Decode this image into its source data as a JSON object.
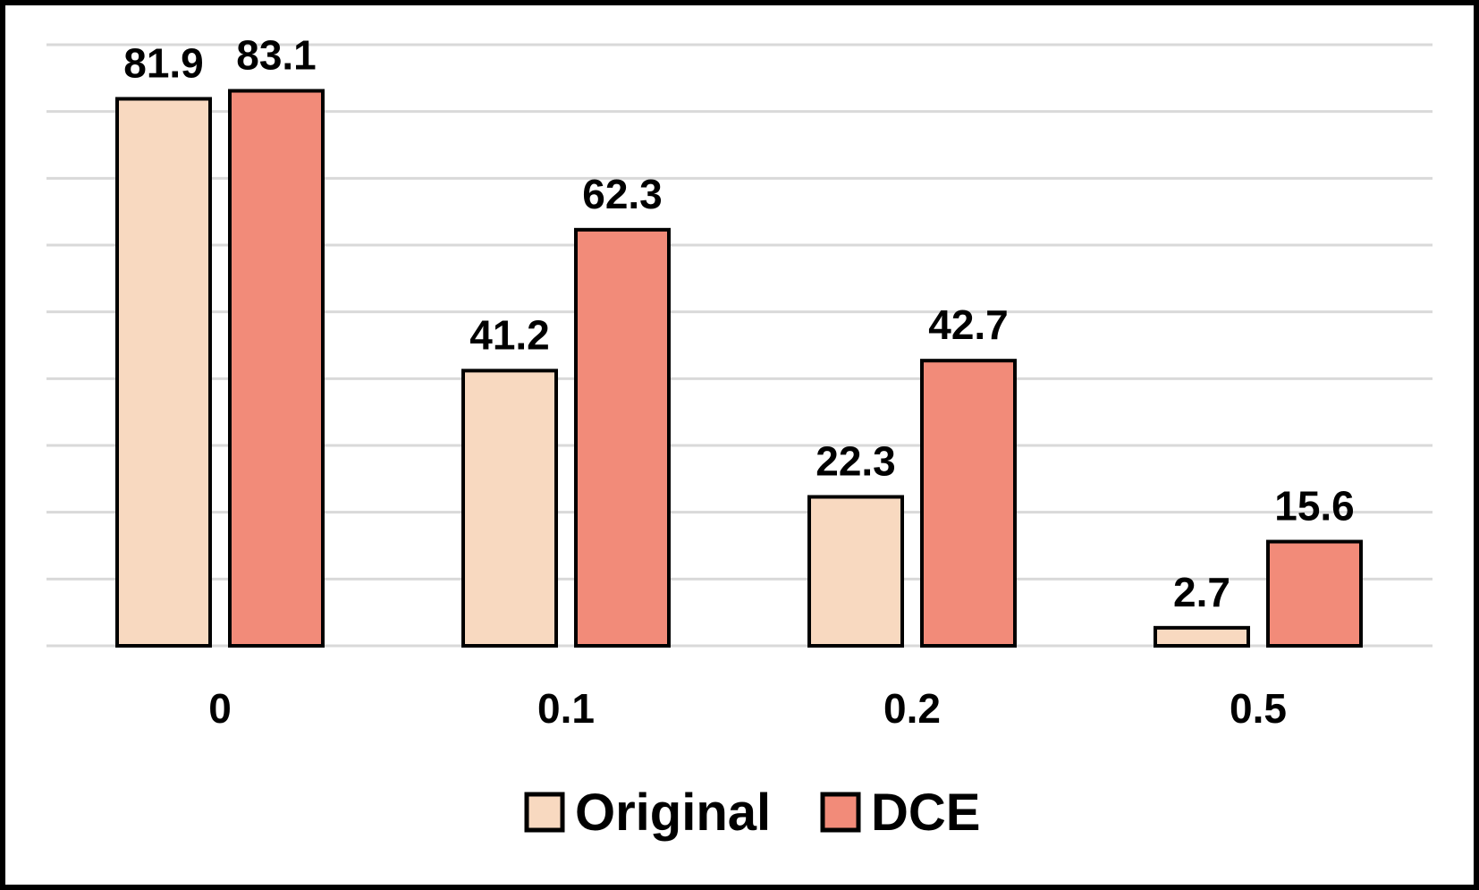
{
  "chart_data": {
    "type": "bar",
    "categories": [
      "0",
      "0.1",
      "0.2",
      "0.5"
    ],
    "series": [
      {
        "name": "Original",
        "color": "#f8d9c0",
        "values": [
          81.9,
          41.2,
          22.3,
          2.7
        ]
      },
      {
        "name": "DCE",
        "color": "#f28b79",
        "values": [
          83.1,
          62.3,
          42.7,
          15.6
        ]
      }
    ],
    "data_labels": {
      "Original": [
        "81.9",
        "41.2",
        "22.3",
        "2.7"
      ],
      "DCE": [
        "83.1",
        "62.3",
        "42.7",
        "15.6"
      ]
    },
    "title": "",
    "xlabel": "",
    "ylabel": "",
    "ylim": [
      0,
      90
    ],
    "y_tick_step": 10,
    "y_axis_labels_visible": false,
    "grid": true,
    "legend_position": "bottom"
  }
}
